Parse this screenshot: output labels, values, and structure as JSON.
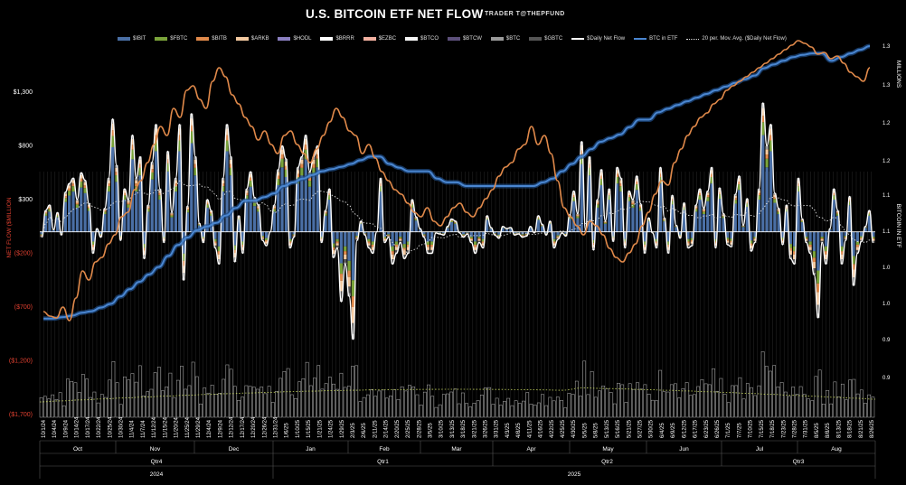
{
  "header": {
    "title": "U.S. BITCOIN ETF NET FLOW",
    "subtitle": "TRADER T@THEPFUND"
  },
  "legend": [
    {
      "label": "$IBIT",
      "color": "#4a6fa5",
      "kind": "bar"
    },
    {
      "label": "$FBTC",
      "color": "#7aa33a",
      "kind": "bar"
    },
    {
      "label": "$BITB",
      "color": "#e0894a",
      "kind": "bar"
    },
    {
      "label": "$ARKB",
      "color": "#f3c9a0",
      "kind": "bar"
    },
    {
      "label": "$HODL",
      "color": "#8a7fc0",
      "kind": "bar"
    },
    {
      "label": "$BRRR",
      "color": "#ffffff",
      "kind": "bar"
    },
    {
      "label": "$EZBC",
      "color": "#f2b0a0",
      "kind": "bar"
    },
    {
      "label": "$BTCO",
      "color": "#f5f5f5",
      "kind": "bar"
    },
    {
      "label": "$BTCW",
      "color": "#5c4f7a",
      "kind": "bar"
    },
    {
      "label": "$BTC",
      "color": "#9a9a9a",
      "kind": "bar"
    },
    {
      "label": "$GBTC",
      "color": "#555555",
      "kind": "bar"
    },
    {
      "label": "$Daily Net Flow",
      "color": "#ffffff",
      "kind": "line"
    },
    {
      "label": "BTC in ETF",
      "color": "#4a86d0",
      "kind": "line"
    },
    {
      "label": "20 per. Mov. Avg. ($Daily Net Flow)",
      "color": "#dddddd",
      "kind": "dotted"
    }
  ],
  "colors": {
    "background": "#000000",
    "negative_label": "#e04030",
    "btc_in_etf": "#4a86d0",
    "price_line": "#e0894a",
    "volume_bar": "#b8b8b8",
    "volume_ma": "#c8d860"
  },
  "axes": {
    "left_title": "NET FLOW ($MILLION",
    "right_title": "BITCOIN IN ETF",
    "right_top_label": "MILLIONS",
    "left_ticks": [
      "$1,300",
      "$800",
      "$300",
      "($200)",
      "($700)",
      "($1,200)",
      "($1,700)"
    ],
    "right_ticks": [
      "1.3",
      "1.3",
      "1.2",
      "1.2",
      "1.1",
      "1.1",
      "1.0",
      "1.0",
      "0.9",
      "0.9"
    ]
  },
  "x_axis": {
    "date_labels": [
      "10/1/24",
      "10/4/24",
      "10/9/24",
      "10/14/24",
      "10/17/24",
      "10/22/24",
      "10/25/24",
      "10/30/24",
      "11/4/24",
      "11/7/24",
      "11/12/24",
      "11/15/24",
      "11/20/24",
      "11/25/24",
      "11/29/24",
      "12/4/24",
      "12/9/24",
      "12/12/24",
      "12/17/24",
      "12/20/24",
      "12/26/24",
      "12/31/24",
      "1/6/25",
      "1/10/25",
      "1/15/25",
      "1/21/25",
      "1/24/25",
      "1/29/25",
      "2/3/25",
      "2/6/25",
      "2/11/25",
      "2/14/25",
      "2/20/25",
      "2/25/25",
      "2/28/25",
      "3/5/25",
      "3/10/25",
      "3/13/25",
      "3/18/25",
      "3/21/25",
      "3/26/25",
      "3/31/25",
      "4/3/25",
      "4/8/25",
      "4/11/25",
      "4/16/25",
      "4/22/25",
      "4/25/25",
      "4/30/25",
      "5/5/25",
      "5/8/25",
      "5/13/25",
      "5/16/25",
      "5/21/25",
      "5/27/25",
      "5/30/25",
      "6/4/25",
      "6/9/25",
      "6/12/25",
      "6/17/25",
      "6/23/25",
      "6/26/25",
      "7/1/25",
      "7/7/25",
      "7/10/25",
      "7/15/25",
      "7/18/25",
      "7/23/25",
      "7/28/25",
      "7/31/25",
      "8/5/25",
      "8/8/25",
      "8/13/25",
      "8/18/25",
      "8/21/25",
      "8/26/25"
    ],
    "months": [
      "Oct",
      "Nov",
      "Dec",
      "Jan",
      "Feb",
      "Mar",
      "Apr",
      "May",
      "Jun",
      "Jul",
      "Aug"
    ],
    "quarters": [
      "Qtr4",
      "Qtr1",
      "Qtr2",
      "Qtr3"
    ],
    "years": [
      "2024",
      "2025"
    ]
  },
  "chart_data": {
    "type": "bar",
    "title": "U.S. BITCOIN ETF NET FLOW",
    "subtitle": "TRADER T@THEPFUND",
    "ylabel": "NET FLOW ($MILLION",
    "y2label": "BITCOIN IN ETF",
    "ylim": [
      -1700,
      1300
    ],
    "y2_ticks": [
      "1.3",
      "1.3",
      "1.2",
      "1.2",
      "1.1",
      "1.1",
      "1.0",
      "1.0",
      "0.9",
      "0.9"
    ],
    "x_range": [
      "10/1/24",
      "8/26/25"
    ],
    "months": [
      "Oct",
      "Nov",
      "Dec",
      "Jan",
      "Feb",
      "Mar",
      "Apr",
      "May",
      "Jun",
      "Jul",
      "Aug"
    ],
    "series": [
      {
        "name": "$Daily Net Flow",
        "kind": "line",
        "values": [
          -50,
          200,
          250,
          20,
          180,
          -30,
          370,
          450,
          500,
          300,
          550,
          480,
          260,
          -200,
          30,
          -50,
          220,
          500,
          1050,
          620,
          -80,
          400,
          300,
          900,
          500,
          700,
          -250,
          250,
          650,
          1000,
          400,
          -100,
          750,
          180,
          500,
          1000,
          -450,
          240,
          1100,
          700,
          80,
          -100,
          300,
          200,
          -150,
          -300,
          500,
          1000,
          700,
          -280,
          150,
          -200,
          400,
          560,
          320,
          250,
          -80,
          -130,
          0,
          250,
          580,
          800,
          680,
          -150,
          -50,
          600,
          700,
          900,
          560,
          700,
          800,
          -100,
          200,
          400,
          -240,
          -150,
          -650,
          -300,
          -600,
          -1000,
          -80,
          100,
          -30,
          -150,
          -200,
          0,
          500,
          -100,
          -50,
          -300,
          -200,
          -100,
          -250,
          -200,
          300,
          140,
          30,
          -50,
          -200,
          -200,
          -10,
          -20,
          -30,
          50,
          120,
          100,
          -10,
          -50,
          -20,
          -100,
          -200,
          -100,
          -150,
          150,
          40,
          -30,
          -60,
          50,
          30,
          40,
          -30,
          -20,
          -50,
          -40,
          50,
          -10,
          150,
          70,
          -30,
          100,
          -150,
          -70,
          -10,
          -40,
          160,
          380,
          170,
          840,
          20,
          700,
          -170,
          300,
          580,
          100,
          400,
          -90,
          600,
          500,
          -150,
          380,
          300,
          520,
          260,
          -200,
          130,
          -10,
          -150,
          600,
          130,
          -200,
          340,
          60,
          -60,
          270,
          -150,
          -130,
          250,
          400,
          220,
          380,
          600,
          -150,
          410,
          170,
          -120,
          -140,
          350,
          520,
          60,
          310,
          -180,
          -100,
          400,
          1200,
          800,
          1000,
          360,
          220,
          -120,
          250,
          -250,
          -300,
          500,
          120,
          -100,
          -200,
          -400,
          -800,
          -100,
          -300,
          30,
          400,
          200,
          -300,
          -80,
          330,
          -500,
          -200,
          -90,
          50,
          200,
          -100
        ]
      },
      {
        "name": "BTC in ETF",
        "kind": "line",
        "axis": "right",
        "values": [
          0.96,
          0.96,
          0.962,
          0.964,
          0.968,
          0.97,
          0.975,
          0.98,
          0.99,
          1.0,
          1.01,
          1.02,
          1.03,
          1.045,
          1.06,
          1.07,
          1.08,
          1.085,
          1.09,
          1.1,
          1.11,
          1.12,
          1.12,
          1.125,
          1.13,
          1.14,
          1.145,
          1.15,
          1.155,
          1.16,
          1.163,
          1.166,
          1.17,
          1.175,
          1.18,
          1.18,
          1.17,
          1.165,
          1.16,
          1.16,
          1.16,
          1.15,
          1.145,
          1.145,
          1.14,
          1.14,
          1.14,
          1.14,
          1.14,
          1.14,
          1.14,
          1.14,
          1.145,
          1.15,
          1.16,
          1.17,
          1.18,
          1.19,
          1.2,
          1.205,
          1.21,
          1.22,
          1.23,
          1.23,
          1.24,
          1.245,
          1.25,
          1.255,
          1.26,
          1.265,
          1.27,
          1.275,
          1.28,
          1.285,
          1.29,
          1.3,
          1.305,
          1.31,
          1.315,
          1.318,
          1.32,
          1.32,
          1.31,
          1.315,
          1.32,
          1.325,
          1.33
        ]
      }
    ]
  }
}
